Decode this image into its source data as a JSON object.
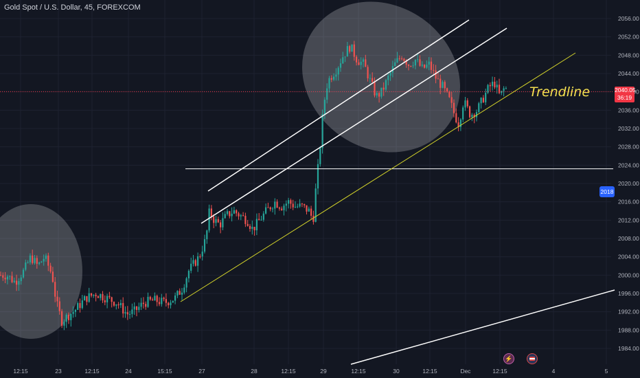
{
  "header": {
    "title": "Gold Spot / U.S. Dollar, 45, FOREXCOM"
  },
  "annotation": {
    "text": "Trendline"
  },
  "price_tag": {
    "price": "2040.05",
    "countdown": "36:19"
  },
  "side_badge": {
    "text": "2018"
  },
  "events": [
    {
      "icon": "lightning-icon"
    },
    {
      "icon": "us-flag-icon"
    }
  ],
  "colors": {
    "background": "#131722",
    "bull": "#26a69a",
    "bear": "#ef5350",
    "trendline": "#d4d42a",
    "channel": "#ffffff",
    "price_line": "#f23645",
    "badge": "#2962ff"
  },
  "chart_data": {
    "type": "candlestick",
    "symbol": "Gold Spot / U.S. Dollar",
    "interval": "45",
    "y_ticks": [
      1984.0,
      1988.0,
      1992.0,
      1996.0,
      2000.0,
      2004.0,
      2008.0,
      2012.0,
      2016.0,
      2020.0,
      2024.0,
      2028.0,
      2032.0,
      2036.0,
      2040.0,
      2044.0,
      2048.0,
      2052.0,
      2056.0
    ],
    "x_labels": [
      "12:15",
      "23",
      "12:15",
      "24",
      "15:15",
      "27",
      "28",
      "12:15",
      "29",
      "12:15",
      "30",
      "12:15",
      "Dec",
      "12:15",
      "4",
      "5"
    ],
    "ylim": [
      1982,
      2058
    ],
    "current_price": 2040.05,
    "horizontal_level": 2023.2,
    "path_anchors": [
      [
        0,
        2000
      ],
      [
        10,
        2000
      ],
      [
        22,
        1998.5
      ],
      [
        35,
        2001
      ],
      [
        45,
        2004
      ],
      [
        55,
        2002
      ],
      [
        65,
        2004
      ],
      [
        76,
        2000
      ],
      [
        82,
        1994
      ],
      [
        90,
        1990
      ],
      [
        98,
        1991
      ],
      [
        110,
        1992.5
      ],
      [
        125,
        1995
      ],
      [
        140,
        1996
      ],
      [
        155,
        1995
      ],
      [
        170,
        1994
      ],
      [
        185,
        1991.5
      ],
      [
        195,
        1992
      ],
      [
        210,
        1994
      ],
      [
        225,
        1994.5
      ],
      [
        240,
        1994
      ],
      [
        255,
        1995
      ],
      [
        265,
        1997
      ],
      [
        275,
        2001
      ],
      [
        290,
        2004
      ],
      [
        300,
        2008
      ],
      [
        305,
        2014
      ],
      [
        312,
        2012
      ],
      [
        320,
        2011
      ],
      [
        330,
        2013
      ],
      [
        340,
        2014
      ],
      [
        350,
        2013
      ],
      [
        360,
        2012
      ],
      [
        368,
        2010
      ],
      [
        378,
        2012
      ],
      [
        388,
        2014
      ],
      [
        400,
        2016
      ],
      [
        410,
        2015
      ],
      [
        420,
        2016
      ],
      [
        430,
        2015
      ],
      [
        440,
        2015
      ],
      [
        450,
        2014
      ],
      [
        456,
        2012
      ],
      [
        460,
        2019
      ],
      [
        465,
        2026
      ],
      [
        470,
        2035
      ],
      [
        475,
        2041
      ],
      [
        480,
        2043
      ],
      [
        490,
        2045
      ],
      [
        500,
        2048
      ],
      [
        510,
        2050
      ],
      [
        520,
        2047
      ],
      [
        530,
        2046
      ],
      [
        540,
        2042
      ],
      [
        548,
        2039
      ],
      [
        556,
        2040
      ],
      [
        565,
        2043
      ],
      [
        575,
        2046
      ],
      [
        585,
        2048
      ],
      [
        595,
        2046
      ],
      [
        605,
        2047
      ],
      [
        615,
        2045
      ],
      [
        625,
        2046
      ],
      [
        635,
        2043
      ],
      [
        645,
        2041
      ],
      [
        655,
        2038
      ],
      [
        662,
        2035
      ],
      [
        668,
        2033
      ],
      [
        675,
        2038
      ],
      [
        685,
        2035
      ],
      [
        695,
        2036
      ],
      [
        705,
        2039
      ],
      [
        712,
        2041
      ],
      [
        720,
        2042
      ],
      [
        728,
        2039
      ],
      [
        735,
        2041
      ],
      [
        740,
        2040.05
      ]
    ]
  }
}
